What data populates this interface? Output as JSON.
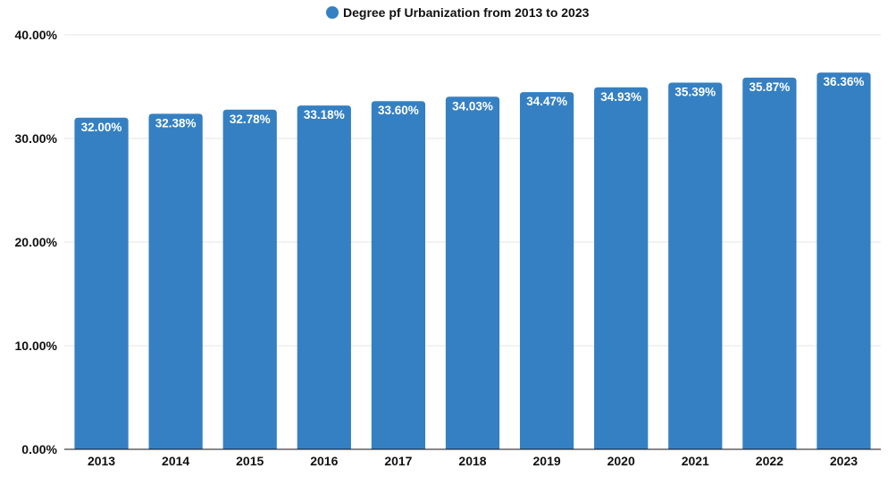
{
  "chart_data": {
    "type": "bar",
    "title": "",
    "xlabel": "",
    "ylabel": "",
    "categories": [
      "2013",
      "2014",
      "2015",
      "2016",
      "2017",
      "2018",
      "2019",
      "2020",
      "2021",
      "2022",
      "2023"
    ],
    "series": [
      {
        "name": "Degree pf Urbanization from 2013 to 2023",
        "values": [
          32.0,
          32.38,
          32.78,
          33.18,
          33.6,
          34.03,
          34.47,
          34.93,
          35.39,
          35.87,
          36.36
        ],
        "labels": [
          "32.00%",
          "32.38%",
          "32.78%",
          "33.18%",
          "33.60%",
          "34.03%",
          "34.47%",
          "34.93%",
          "35.39%",
          "35.87%",
          "36.36%"
        ]
      }
    ],
    "ylim": [
      0,
      40
    ],
    "yticks": [
      0,
      10,
      20,
      30,
      40
    ],
    "ytick_labels": [
      "0.00%",
      "10.00%",
      "20.00%",
      "30.00%",
      "40.00%"
    ],
    "grid": true,
    "legend": "top-center"
  },
  "colors": {
    "bar": "#3580c2",
    "grid": "#e6e6e6",
    "axis": "#111111",
    "label": "#ffffff"
  }
}
